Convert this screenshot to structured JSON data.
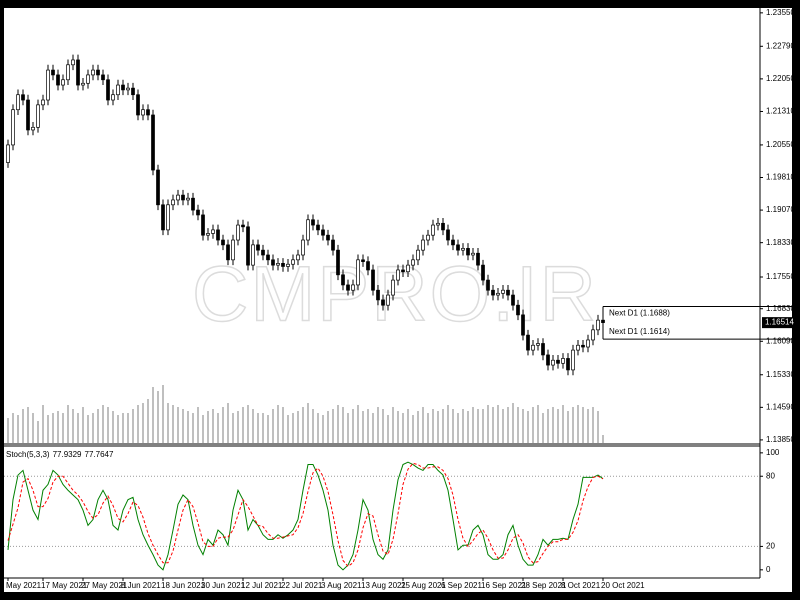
{
  "chart_data": {
    "type": "candlestick",
    "categories": [
      "May 2021",
      null,
      null,
      null,
      null,
      null,
      null,
      "17 May 2021",
      null,
      null,
      null,
      null,
      null,
      null,
      null,
      "27 May 2021",
      null,
      null,
      null,
      null,
      null,
      null,
      null,
      "8 Jun 2021",
      null,
      null,
      null,
      null,
      null,
      null,
      null,
      "18 Jun 2021",
      null,
      null,
      null,
      null,
      null,
      null,
      null,
      "30 Jun 2021",
      null,
      null,
      null,
      null,
      null,
      null,
      null,
      "12 Jul 2021",
      null,
      null,
      null,
      null,
      null,
      null,
      null,
      "22 Jul 2021",
      null,
      null,
      null,
      null,
      null,
      null,
      null,
      "3 Aug 2021",
      null,
      null,
      null,
      null,
      null,
      null,
      null,
      "13 Aug 2021",
      null,
      null,
      null,
      null,
      null,
      null,
      null,
      "25 Aug 2021",
      null,
      null,
      null,
      null,
      null,
      null,
      null,
      "6 Sep 2021",
      null,
      null,
      null,
      null,
      null,
      null,
      null,
      "16 Sep 2021",
      null,
      null,
      null,
      null,
      null,
      null,
      null,
      "28 Sep 2021",
      null,
      null,
      null,
      null,
      null,
      null,
      null,
      "8 Oct 2021",
      null,
      null,
      null,
      null,
      null,
      null,
      null,
      "20 Oct 2021"
    ],
    "open": [
      1.2015,
      1.2055,
      1.2135,
      1.2169,
      1.2157,
      1.2089,
      1.2095,
      1.2146,
      1.2157,
      1.2225,
      1.2214,
      1.2191,
      1.2203,
      1.2237,
      1.2248,
      1.2191,
      1.2195,
      1.2214,
      1.2225,
      1.2214,
      1.2203,
      1.2157,
      1.2169,
      1.2191,
      1.218,
      1.2184,
      1.2169,
      1.2123,
      1.2135,
      1.2123,
      1.1998,
      1.1919,
      1.1862,
      1.1919,
      1.193,
      1.1941,
      1.193,
      1.1934,
      1.1907,
      1.1896,
      1.185,
      1.1854,
      1.1862,
      1.1839,
      1.1828,
      1.1794,
      1.1839,
      1.1873,
      1.1869,
      1.1782,
      1.1828,
      1.1816,
      1.1805,
      1.1794,
      1.1782,
      1.1786,
      1.1779,
      1.1784,
      1.1794,
      1.1805,
      1.1839,
      1.1885,
      1.1873,
      1.1862,
      1.185,
      1.1839,
      1.1816,
      1.176,
      1.1737,
      1.1725,
      1.1737,
      1.1794,
      1.179,
      1.1771,
      1.1725,
      1.1703,
      1.1691,
      1.1714,
      1.1748,
      1.1771,
      1.1767,
      1.1782,
      1.1794,
      1.1816,
      1.1839,
      1.185,
      1.1873,
      1.1877,
      1.1862,
      1.1839,
      1.1828,
      1.1816,
      1.182,
      1.1805,
      1.1809,
      1.1782,
      1.1748,
      1.1725,
      1.1714,
      1.1718,
      1.1725,
      1.1714,
      1.1691,
      1.1669,
      1.1623,
      1.1589,
      1.16,
      1.1604,
      1.1578,
      1.1555,
      1.1566,
      1.1559,
      1.157,
      1.1544,
      1.1589,
      1.16,
      1.1596,
      1.1612,
      1.1635,
      1.1657
    ],
    "high": [
      1.2067,
      1.2147,
      1.2181,
      1.2181,
      1.2169,
      1.2107,
      1.2158,
      1.2169,
      1.2237,
      1.2237,
      1.2226,
      1.2215,
      1.2249,
      1.226,
      1.226,
      1.2207,
      1.2226,
      1.2237,
      1.2237,
      1.2226,
      1.2215,
      1.2181,
      1.2203,
      1.2203,
      1.2196,
      1.2196,
      1.2181,
      1.2147,
      1.2147,
      1.2135,
      1.201,
      1.1931,
      1.1931,
      1.1942,
      1.1953,
      1.1953,
      1.1946,
      1.1946,
      1.1919,
      1.1908,
      1.1866,
      1.1874,
      1.1874,
      1.1851,
      1.184,
      1.1851,
      1.1885,
      1.1885,
      1.1881,
      1.184,
      1.184,
      1.1828,
      1.1817,
      1.1806,
      1.1798,
      1.1798,
      1.1796,
      1.1806,
      1.1817,
      1.1851,
      1.1897,
      1.1897,
      1.1885,
      1.1874,
      1.1862,
      1.1851,
      1.1828,
      1.1772,
      1.1749,
      1.1749,
      1.1806,
      1.1806,
      1.1802,
      1.1783,
      1.1737,
      1.1715,
      1.1726,
      1.176,
      1.1783,
      1.1783,
      1.1794,
      1.1806,
      1.1828,
      1.1851,
      1.1862,
      1.1885,
      1.1889,
      1.1889,
      1.1874,
      1.1851,
      1.184,
      1.1832,
      1.1832,
      1.1821,
      1.1821,
      1.1794,
      1.176,
      1.1737,
      1.173,
      1.1737,
      1.1737,
      1.1726,
      1.1703,
      1.1681,
      1.1635,
      1.1612,
      1.1616,
      1.1616,
      1.159,
      1.1578,
      1.1578,
      1.1582,
      1.1582,
      1.1601,
      1.1612,
      1.1612,
      1.1624,
      1.1647,
      1.1669,
      1.1669
    ],
    "low": [
      1.2003,
      1.2043,
      1.2123,
      1.2145,
      1.2077,
      1.2077,
      1.2083,
      1.2134,
      1.2145,
      1.2202,
      1.2179,
      1.2179,
      1.2191,
      1.2225,
      1.2179,
      1.2179,
      1.2183,
      1.2202,
      1.2202,
      1.2191,
      1.2145,
      1.2145,
      1.2157,
      1.2168,
      1.2168,
      1.2157,
      1.2111,
      1.2111,
      1.2111,
      1.1986,
      1.1907,
      1.185,
      1.185,
      1.1907,
      1.1918,
      1.1918,
      1.1918,
      1.1895,
      1.1884,
      1.1838,
      1.1838,
      1.1842,
      1.1827,
      1.1816,
      1.1782,
      1.1782,
      1.1827,
      1.1857,
      1.177,
      1.177,
      1.1804,
      1.1793,
      1.1782,
      1.177,
      1.177,
      1.1767,
      1.1767,
      1.1772,
      1.1782,
      1.1793,
      1.1827,
      1.1861,
      1.185,
      1.1838,
      1.1827,
      1.1804,
      1.1748,
      1.1725,
      1.1713,
      1.1713,
      1.1725,
      1.1778,
      1.1759,
      1.1713,
      1.1691,
      1.1679,
      1.1679,
      1.1702,
      1.1736,
      1.1755,
      1.1755,
      1.177,
      1.1782,
      1.1804,
      1.1827,
      1.1838,
      1.1861,
      1.185,
      1.1827,
      1.1816,
      1.1804,
      1.1804,
      1.1793,
      1.1793,
      1.177,
      1.1736,
      1.1713,
      1.1702,
      1.1702,
      1.1706,
      1.1702,
      1.1679,
      1.1657,
      1.1611,
      1.1577,
      1.1577,
      1.1588,
      1.1566,
      1.1543,
      1.1543,
      1.1547,
      1.1547,
      1.1532,
      1.1532,
      1.1577,
      1.1584,
      1.1584,
      1.16,
      1.1623,
      1.1639
    ],
    "close": [
      1.2055,
      1.2135,
      1.2169,
      1.2157,
      1.2089,
      1.2095,
      1.2146,
      1.2157,
      1.2225,
      1.2214,
      1.2191,
      1.2203,
      1.2237,
      1.2248,
      1.2191,
      1.2195,
      1.2214,
      1.2225,
      1.2214,
      1.2203,
      1.2157,
      1.2169,
      1.2191,
      1.218,
      1.2184,
      1.2169,
      1.2123,
      1.2135,
      1.2123,
      1.1998,
      1.1919,
      1.1862,
      1.1919,
      1.193,
      1.1941,
      1.193,
      1.1934,
      1.1907,
      1.1896,
      1.185,
      1.1854,
      1.1862,
      1.1839,
      1.1828,
      1.1794,
      1.1839,
      1.1873,
      1.1869,
      1.1782,
      1.1828,
      1.1816,
      1.1805,
      1.1794,
      1.1782,
      1.1786,
      1.1779,
      1.1784,
      1.1794,
      1.1805,
      1.1839,
      1.1885,
      1.1873,
      1.1862,
      1.185,
      1.1839,
      1.1816,
      1.176,
      1.1737,
      1.1725,
      1.1737,
      1.1794,
      1.179,
      1.1771,
      1.1725,
      1.1703,
      1.1691,
      1.1714,
      1.1748,
      1.1771,
      1.1767,
      1.1782,
      1.1794,
      1.1816,
      1.1839,
      1.185,
      1.1873,
      1.1877,
      1.1862,
      1.1839,
      1.1828,
      1.1816,
      1.182,
      1.1805,
      1.1809,
      1.1782,
      1.1748,
      1.1725,
      1.1714,
      1.1718,
      1.1725,
      1.1714,
      1.1691,
      1.1669,
      1.1623,
      1.1589,
      1.16,
      1.1604,
      1.1578,
      1.1555,
      1.1566,
      1.1559,
      1.157,
      1.1544,
      1.1589,
      1.16,
      1.1596,
      1.1612,
      1.1635,
      1.1657,
      1.16514
    ],
    "bull_color": "#ffffff",
    "bear_color": "#000000",
    "ylim": [
      1.1378,
      1.2366
    ],
    "yticks": [
      {
        "value": 1.2355,
        "label": "1.23550"
      },
      {
        "value": 1.2279,
        "label": "1.22790"
      },
      {
        "value": 1.2205,
        "label": "1.22050"
      },
      {
        "value": 1.2131,
        "label": "1.21310"
      },
      {
        "value": 1.2055,
        "label": "1.20550"
      },
      {
        "value": 1.1981,
        "label": "1.19810"
      },
      {
        "value": 1.1907,
        "label": "1.19070"
      },
      {
        "value": 1.1833,
        "label": "1.18330"
      },
      {
        "value": 1.1755,
        "label": "1.17550"
      },
      {
        "value": 1.1683,
        "label": "1.16830"
      },
      {
        "value": 1.1609,
        "label": "1.16090"
      },
      {
        "value": 1.1533,
        "label": "1.15330"
      },
      {
        "value": 1.1459,
        "label": "1.14590"
      },
      {
        "value": 1.1385,
        "label": "1.13850"
      }
    ],
    "volume": {
      "color": "#7f7f7f",
      "values": [
        25,
        30,
        28,
        34,
        36,
        30,
        22,
        38,
        28,
        30,
        32,
        30,
        38,
        34,
        30,
        36,
        28,
        30,
        34,
        38,
        36,
        32,
        28,
        30,
        30,
        34,
        38,
        40,
        44,
        56,
        52,
        58,
        40,
        38,
        36,
        34,
        32,
        30,
        36,
        28,
        32,
        34,
        30,
        36,
        40,
        30,
        32,
        36,
        38,
        34,
        30,
        30,
        28,
        34,
        38,
        36,
        28,
        30,
        32,
        36,
        40,
        34,
        30,
        28,
        32,
        34,
        38,
        36,
        30,
        34,
        38,
        32,
        34,
        30,
        36,
        34,
        28,
        36,
        32,
        30,
        34,
        28,
        32,
        36,
        30,
        34,
        32,
        34,
        38,
        34,
        30,
        34,
        32,
        36,
        34,
        34,
        38,
        36,
        38,
        34,
        36,
        40,
        36,
        34,
        32,
        36,
        38,
        30,
        34,
        36,
        34,
        38,
        32,
        36,
        38,
        36,
        34,
        36,
        32,
        8
      ]
    },
    "hlines": [
      {
        "label": "Next D1 (1.1688)",
        "value": 1.1688
      },
      {
        "label": "Next D1 (1.1614)",
        "value": 1.1614
      }
    ],
    "watermark": "CMPRO.IR",
    "stochastic": {
      "name": "Stoch(5,3,3)",
      "ylim": [
        -7,
        105
      ],
      "yticks": [
        100,
        80,
        20,
        0
      ],
      "levels": [
        80,
        20
      ],
      "series": [
        {
          "color": "#008000",
          "values": [
            17,
            60,
            81,
            85,
            68,
            51,
            43,
            68,
            73,
            85,
            81,
            73,
            68,
            64,
            60,
            51,
            38,
            43,
            60,
            68,
            60,
            38,
            34,
            51,
            60,
            62,
            43,
            30,
            21,
            13,
            4,
            0,
            13,
            34,
            56,
            64,
            60,
            38,
            21,
            13,
            26,
            21,
            34,
            30,
            21,
            51,
            68,
            60,
            34,
            43,
            38,
            30,
            26,
            26,
            30,
            27,
            30,
            34,
            43,
            68,
            90,
            90,
            81,
            68,
            51,
            21,
            4,
            0,
            4,
            13,
            34,
            60,
            51,
            26,
            13,
            9,
            17,
            51,
            77,
            90,
            92,
            90,
            87,
            85,
            90,
            90,
            85,
            81,
            68,
            43,
            17,
            21,
            21,
            34,
            38,
            30,
            13,
            9,
            9,
            13,
            30,
            38,
            21,
            9,
            4,
            4,
            13,
            26,
            21,
            26,
            26,
            27,
            26,
            43,
            56,
            79,
            79,
            79,
            81,
            77.9329
          ]
        },
        {
          "color": "#ff0000",
          "dashed": true,
          "values": [
            25,
            39,
            53,
            75,
            78,
            68,
            54,
            54,
            61,
            75,
            80,
            80,
            74,
            68,
            64,
            58,
            50,
            44,
            47,
            57,
            63,
            55,
            44,
            41,
            48,
            58,
            55,
            45,
            31,
            21,
            13,
            6,
            6,
            16,
            34,
            51,
            60,
            54,
            40,
            24,
            20,
            20,
            27,
            28,
            28,
            34,
            47,
            60,
            54,
            46,
            38,
            37,
            31,
            27,
            27,
            28,
            29,
            30,
            36,
            48,
            67,
            83,
            87,
            80,
            67,
            47,
            25,
            8,
            3,
            6,
            17,
            36,
            48,
            46,
            30,
            16,
            13,
            26,
            48,
            73,
            86,
            91,
            90,
            87,
            87,
            88,
            88,
            85,
            78,
            64,
            43,
            27,
            20,
            25,
            31,
            34,
            27,
            17,
            10,
            10,
            17,
            27,
            30,
            23,
            11,
            6,
            7,
            14,
            20,
            24,
            24,
            26,
            26,
            32,
            42,
            59,
            71,
            79,
            80,
            77.7647
          ]
        }
      ]
    }
  }
}
